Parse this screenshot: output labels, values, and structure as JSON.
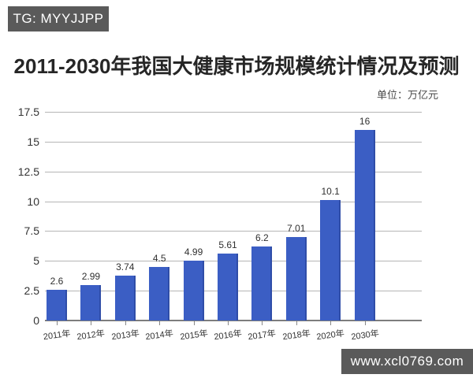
{
  "watermarks": {
    "top_left": "TG: MYYJJPP",
    "bottom_right": "www.xcl0769.com"
  },
  "chart": {
    "title": "2011-2030年我国大健康市场规模统计情况及预测",
    "unit_label": "单位：万亿元"
  },
  "chart_data": {
    "type": "bar",
    "title": "2011-2030年我国大健康市场规模统计情况及预测",
    "unit": "万亿元",
    "categories": [
      "2011年",
      "2012年",
      "2013年",
      "2014年",
      "2015年",
      "2016年",
      "2017年",
      "2018年",
      "2020年",
      "2030年"
    ],
    "values": [
      2.6,
      2.99,
      3.74,
      4.5,
      4.99,
      5.61,
      6.2,
      7.01,
      10.1,
      16
    ],
    "value_labels": [
      "2.6",
      "2.99",
      "3.74",
      "4.5",
      "4.99",
      "5.61",
      "6.2",
      "7.01",
      "10.1",
      "16"
    ],
    "ylim": [
      0,
      17.5
    ],
    "yticks": [
      0,
      2.5,
      5,
      7.5,
      10,
      12.5,
      15,
      17.5
    ],
    "ytick_labels": [
      "0",
      "2.5",
      "5",
      "7.5",
      "10",
      "12.5",
      "15",
      "17.5"
    ],
    "grid": true,
    "legend": false,
    "bar_color": "#3b5ec4",
    "grid_color": "#9c9c9c"
  }
}
